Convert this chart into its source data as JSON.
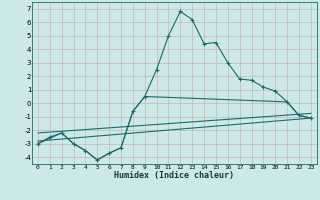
{
  "xlabel": "Humidex (Indice chaleur)",
  "bg_color": "#cce8e8",
  "grid_color": "#c4b8b8",
  "line_color": "#1a6b6b",
  "xlim": [
    -0.5,
    23.5
  ],
  "ylim": [
    -4.5,
    7.5
  ],
  "xticks": [
    0,
    1,
    2,
    3,
    4,
    5,
    6,
    7,
    8,
    9,
    10,
    11,
    12,
    13,
    14,
    15,
    16,
    17,
    18,
    19,
    20,
    21,
    22,
    23
  ],
  "yticks": [
    -4,
    -3,
    -2,
    -1,
    0,
    1,
    2,
    3,
    4,
    5,
    6,
    7
  ],
  "series1_x": [
    0,
    1,
    2,
    3,
    4,
    5,
    6,
    7,
    8,
    9,
    10,
    11,
    12,
    13,
    14,
    15,
    16,
    17,
    18,
    19,
    20,
    21,
    22,
    23
  ],
  "series1_y": [
    -3.0,
    -2.5,
    -2.2,
    -3.0,
    -3.5,
    -4.2,
    -3.7,
    -3.3,
    -0.6,
    0.5,
    2.5,
    5.0,
    6.8,
    6.2,
    4.4,
    4.5,
    3.0,
    1.8,
    1.7,
    1.2,
    0.9,
    0.1,
    -0.9,
    -1.1
  ],
  "series2_x": [
    0,
    2,
    3,
    4,
    5,
    6,
    7,
    8,
    9,
    21,
    22,
    23
  ],
  "series2_y": [
    -3.0,
    -2.2,
    -3.0,
    -3.5,
    -4.2,
    -3.7,
    -3.3,
    -0.6,
    0.5,
    0.1,
    -0.9,
    -1.1
  ],
  "series3_x": [
    0,
    23
  ],
  "series3_y": [
    -2.8,
    -1.1
  ],
  "series4_x": [
    0,
    23
  ],
  "series4_y": [
    -2.2,
    -0.75
  ]
}
